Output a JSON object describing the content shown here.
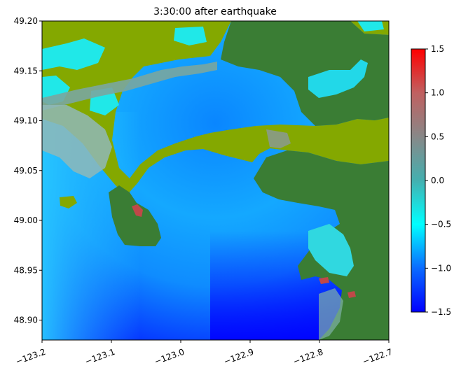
{
  "chart_data": {
    "type": "heatmap",
    "title": "3:30:00 after earthquake",
    "xlabel": "",
    "ylabel": "",
    "xlim": [
      -123.2,
      -122.7
    ],
    "ylim": [
      48.88,
      49.2
    ],
    "x_ticks": [
      "−123.2",
      "−123.1",
      "−123.0",
      "−122.9",
      "−122.8",
      "−122.7"
    ],
    "x_tick_values": [
      -123.2,
      -123.1,
      -123.0,
      -122.9,
      -122.8,
      -122.7
    ],
    "y_ticks": [
      "49.20",
      "49.15",
      "49.10",
      "49.05",
      "49.00",
      "48.95",
      "48.90"
    ],
    "y_tick_values": [
      49.2,
      49.15,
      49.1,
      49.05,
      49.0,
      48.95,
      48.9
    ],
    "grid": false,
    "colorbar": {
      "range": [
        -1.5,
        1.5
      ],
      "ticks": [
        "−1.5",
        "−1.0",
        "−0.5",
        "0.0",
        "0.5",
        "1.0",
        "1.5"
      ],
      "tick_values": [
        -1.5,
        -1.0,
        -0.5,
        0.0,
        0.5,
        1.0,
        1.5
      ],
      "colormap": [
        "#0000ff",
        "#0a6bff",
        "#00ffff",
        "#44b0b0",
        "#888888",
        "#c06060",
        "#ff0000"
      ]
    },
    "land_colors": {
      "high_land": "#3a7d34",
      "low_land": "#84a800",
      "dry_land_gray": "#8a9a8a"
    }
  }
}
